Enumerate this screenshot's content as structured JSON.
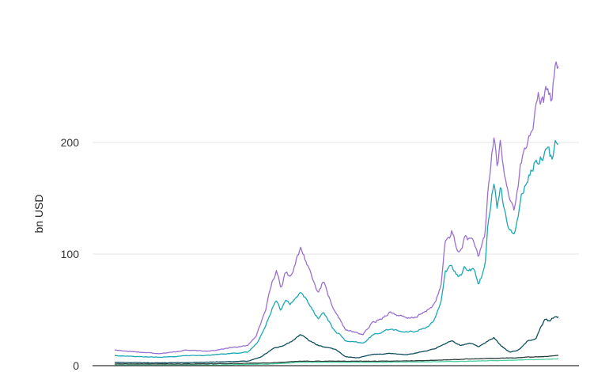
{
  "chart_data": {
    "type": "line",
    "title": "",
    "xlabel": "",
    "ylabel": "bn USD",
    "ylim": [
      0,
      270
    ],
    "yticks": [
      0,
      100,
      200
    ],
    "ytick_labels": [
      "0",
      "100",
      "200"
    ],
    "grid": true,
    "legend": "none",
    "colors": {
      "gridline": "#e6e6e6",
      "baseline": "#333333"
    },
    "series": [
      {
        "color": "#9b6fd2",
        "points": [
          [
            0,
            14
          ],
          [
            0.03,
            13
          ],
          [
            0.06,
            12
          ],
          [
            0.1,
            11
          ],
          [
            0.13,
            12
          ],
          [
            0.16,
            14
          ],
          [
            0.2,
            13
          ],
          [
            0.23,
            14
          ],
          [
            0.26,
            16
          ],
          [
            0.3,
            18
          ],
          [
            0.32,
            28
          ],
          [
            0.34,
            50
          ],
          [
            0.355,
            75
          ],
          [
            0.365,
            85
          ],
          [
            0.375,
            70
          ],
          [
            0.385,
            85
          ],
          [
            0.395,
            80
          ],
          [
            0.41,
            95
          ],
          [
            0.42,
            105
          ],
          [
            0.435,
            90
          ],
          [
            0.45,
            75
          ],
          [
            0.46,
            65
          ],
          [
            0.47,
            75
          ],
          [
            0.48,
            65
          ],
          [
            0.49,
            52
          ],
          [
            0.5,
            45
          ],
          [
            0.51,
            40
          ],
          [
            0.52,
            32
          ],
          [
            0.54,
            30
          ],
          [
            0.56,
            28
          ],
          [
            0.58,
            38
          ],
          [
            0.6,
            42
          ],
          [
            0.62,
            48
          ],
          [
            0.64,
            45
          ],
          [
            0.66,
            42
          ],
          [
            0.68,
            44
          ],
          [
            0.7,
            48
          ],
          [
            0.72,
            55
          ],
          [
            0.735,
            70
          ],
          [
            0.745,
            110
          ],
          [
            0.76,
            120
          ],
          [
            0.775,
            100
          ],
          [
            0.79,
            115
          ],
          [
            0.81,
            112
          ],
          [
            0.82,
            95
          ],
          [
            0.835,
            118
          ],
          [
            0.84,
            150
          ],
          [
            0.85,
            190
          ],
          [
            0.855,
            205
          ],
          [
            0.862,
            180
          ],
          [
            0.87,
            200
          ],
          [
            0.878,
            170
          ],
          [
            0.89,
            150
          ],
          [
            0.9,
            140
          ],
          [
            0.915,
            180
          ],
          [
            0.93,
            200
          ],
          [
            0.945,
            220
          ],
          [
            0.955,
            240
          ],
          [
            0.965,
            235
          ],
          [
            0.975,
            250
          ],
          [
            0.985,
            240
          ],
          [
            0.992,
            265
          ],
          [
            1,
            270
          ]
        ]
      },
      {
        "color": "#1ba7b3",
        "points": [
          [
            0,
            9
          ],
          [
            0.03,
            8.5
          ],
          [
            0.06,
            8
          ],
          [
            0.1,
            7.5
          ],
          [
            0.13,
            8
          ],
          [
            0.16,
            9
          ],
          [
            0.2,
            9
          ],
          [
            0.23,
            10
          ],
          [
            0.26,
            11
          ],
          [
            0.3,
            12
          ],
          [
            0.32,
            20
          ],
          [
            0.34,
            35
          ],
          [
            0.355,
            52
          ],
          [
            0.365,
            60
          ],
          [
            0.375,
            50
          ],
          [
            0.385,
            58
          ],
          [
            0.395,
            55
          ],
          [
            0.41,
            62
          ],
          [
            0.42,
            65
          ],
          [
            0.435,
            58
          ],
          [
            0.45,
            48
          ],
          [
            0.46,
            42
          ],
          [
            0.47,
            48
          ],
          [
            0.48,
            42
          ],
          [
            0.49,
            34
          ],
          [
            0.5,
            30
          ],
          [
            0.51,
            27
          ],
          [
            0.52,
            22
          ],
          [
            0.54,
            21
          ],
          [
            0.56,
            20
          ],
          [
            0.58,
            27
          ],
          [
            0.6,
            30
          ],
          [
            0.62,
            33
          ],
          [
            0.64,
            31
          ],
          [
            0.66,
            30
          ],
          [
            0.68,
            31
          ],
          [
            0.7,
            34
          ],
          [
            0.72,
            40
          ],
          [
            0.735,
            55
          ],
          [
            0.745,
            85
          ],
          [
            0.76,
            90
          ],
          [
            0.775,
            78
          ],
          [
            0.79,
            88
          ],
          [
            0.81,
            86
          ],
          [
            0.82,
            72
          ],
          [
            0.835,
            90
          ],
          [
            0.84,
            120
          ],
          [
            0.85,
            150
          ],
          [
            0.855,
            165
          ],
          [
            0.862,
            145
          ],
          [
            0.87,
            160
          ],
          [
            0.878,
            140
          ],
          [
            0.89,
            120
          ],
          [
            0.9,
            115
          ],
          [
            0.915,
            150
          ],
          [
            0.93,
            170
          ],
          [
            0.945,
            180
          ],
          [
            0.955,
            185
          ],
          [
            0.965,
            190
          ],
          [
            0.975,
            195
          ],
          [
            0.985,
            185
          ],
          [
            0.992,
            200
          ],
          [
            1,
            205
          ]
        ]
      },
      {
        "color": "#0e4d5c",
        "points": [
          [
            0,
            3
          ],
          [
            0.1,
            2.5
          ],
          [
            0.2,
            3
          ],
          [
            0.3,
            4
          ],
          [
            0.33,
            8
          ],
          [
            0.36,
            16
          ],
          [
            0.38,
            18
          ],
          [
            0.4,
            22
          ],
          [
            0.42,
            28
          ],
          [
            0.44,
            22
          ],
          [
            0.46,
            18
          ],
          [
            0.48,
            16
          ],
          [
            0.5,
            14
          ],
          [
            0.52,
            8
          ],
          [
            0.55,
            7
          ],
          [
            0.58,
            10
          ],
          [
            0.62,
            11
          ],
          [
            0.66,
            10
          ],
          [
            0.7,
            13
          ],
          [
            0.72,
            15
          ],
          [
            0.74,
            19
          ],
          [
            0.76,
            22
          ],
          [
            0.78,
            18
          ],
          [
            0.8,
            20
          ],
          [
            0.82,
            17
          ],
          [
            0.84,
            22
          ],
          [
            0.855,
            25
          ],
          [
            0.87,
            18
          ],
          [
            0.89,
            12
          ],
          [
            0.91,
            14
          ],
          [
            0.93,
            22
          ],
          [
            0.95,
            25
          ],
          [
            0.96,
            35
          ],
          [
            0.97,
            42
          ],
          [
            0.98,
            40
          ],
          [
            0.99,
            43
          ],
          [
            1,
            44
          ]
        ]
      },
      {
        "color": "#2c3e3c",
        "points": [
          [
            0,
            1.5
          ],
          [
            0.2,
            1.5
          ],
          [
            0.35,
            2.5
          ],
          [
            0.42,
            4
          ],
          [
            0.5,
            4
          ],
          [
            0.6,
            4
          ],
          [
            0.7,
            4.5
          ],
          [
            0.8,
            6
          ],
          [
            0.9,
            7
          ],
          [
            0.95,
            8
          ],
          [
            1,
            9
          ]
        ]
      },
      {
        "color": "#4cd0a0",
        "points": [
          [
            0,
            0.5
          ],
          [
            0.2,
            0.5
          ],
          [
            0.35,
            1.5
          ],
          [
            0.42,
            3
          ],
          [
            0.5,
            3
          ],
          [
            0.6,
            3
          ],
          [
            0.7,
            3.5
          ],
          [
            0.8,
            4
          ],
          [
            0.9,
            5
          ],
          [
            1,
            6
          ]
        ]
      }
    ]
  }
}
